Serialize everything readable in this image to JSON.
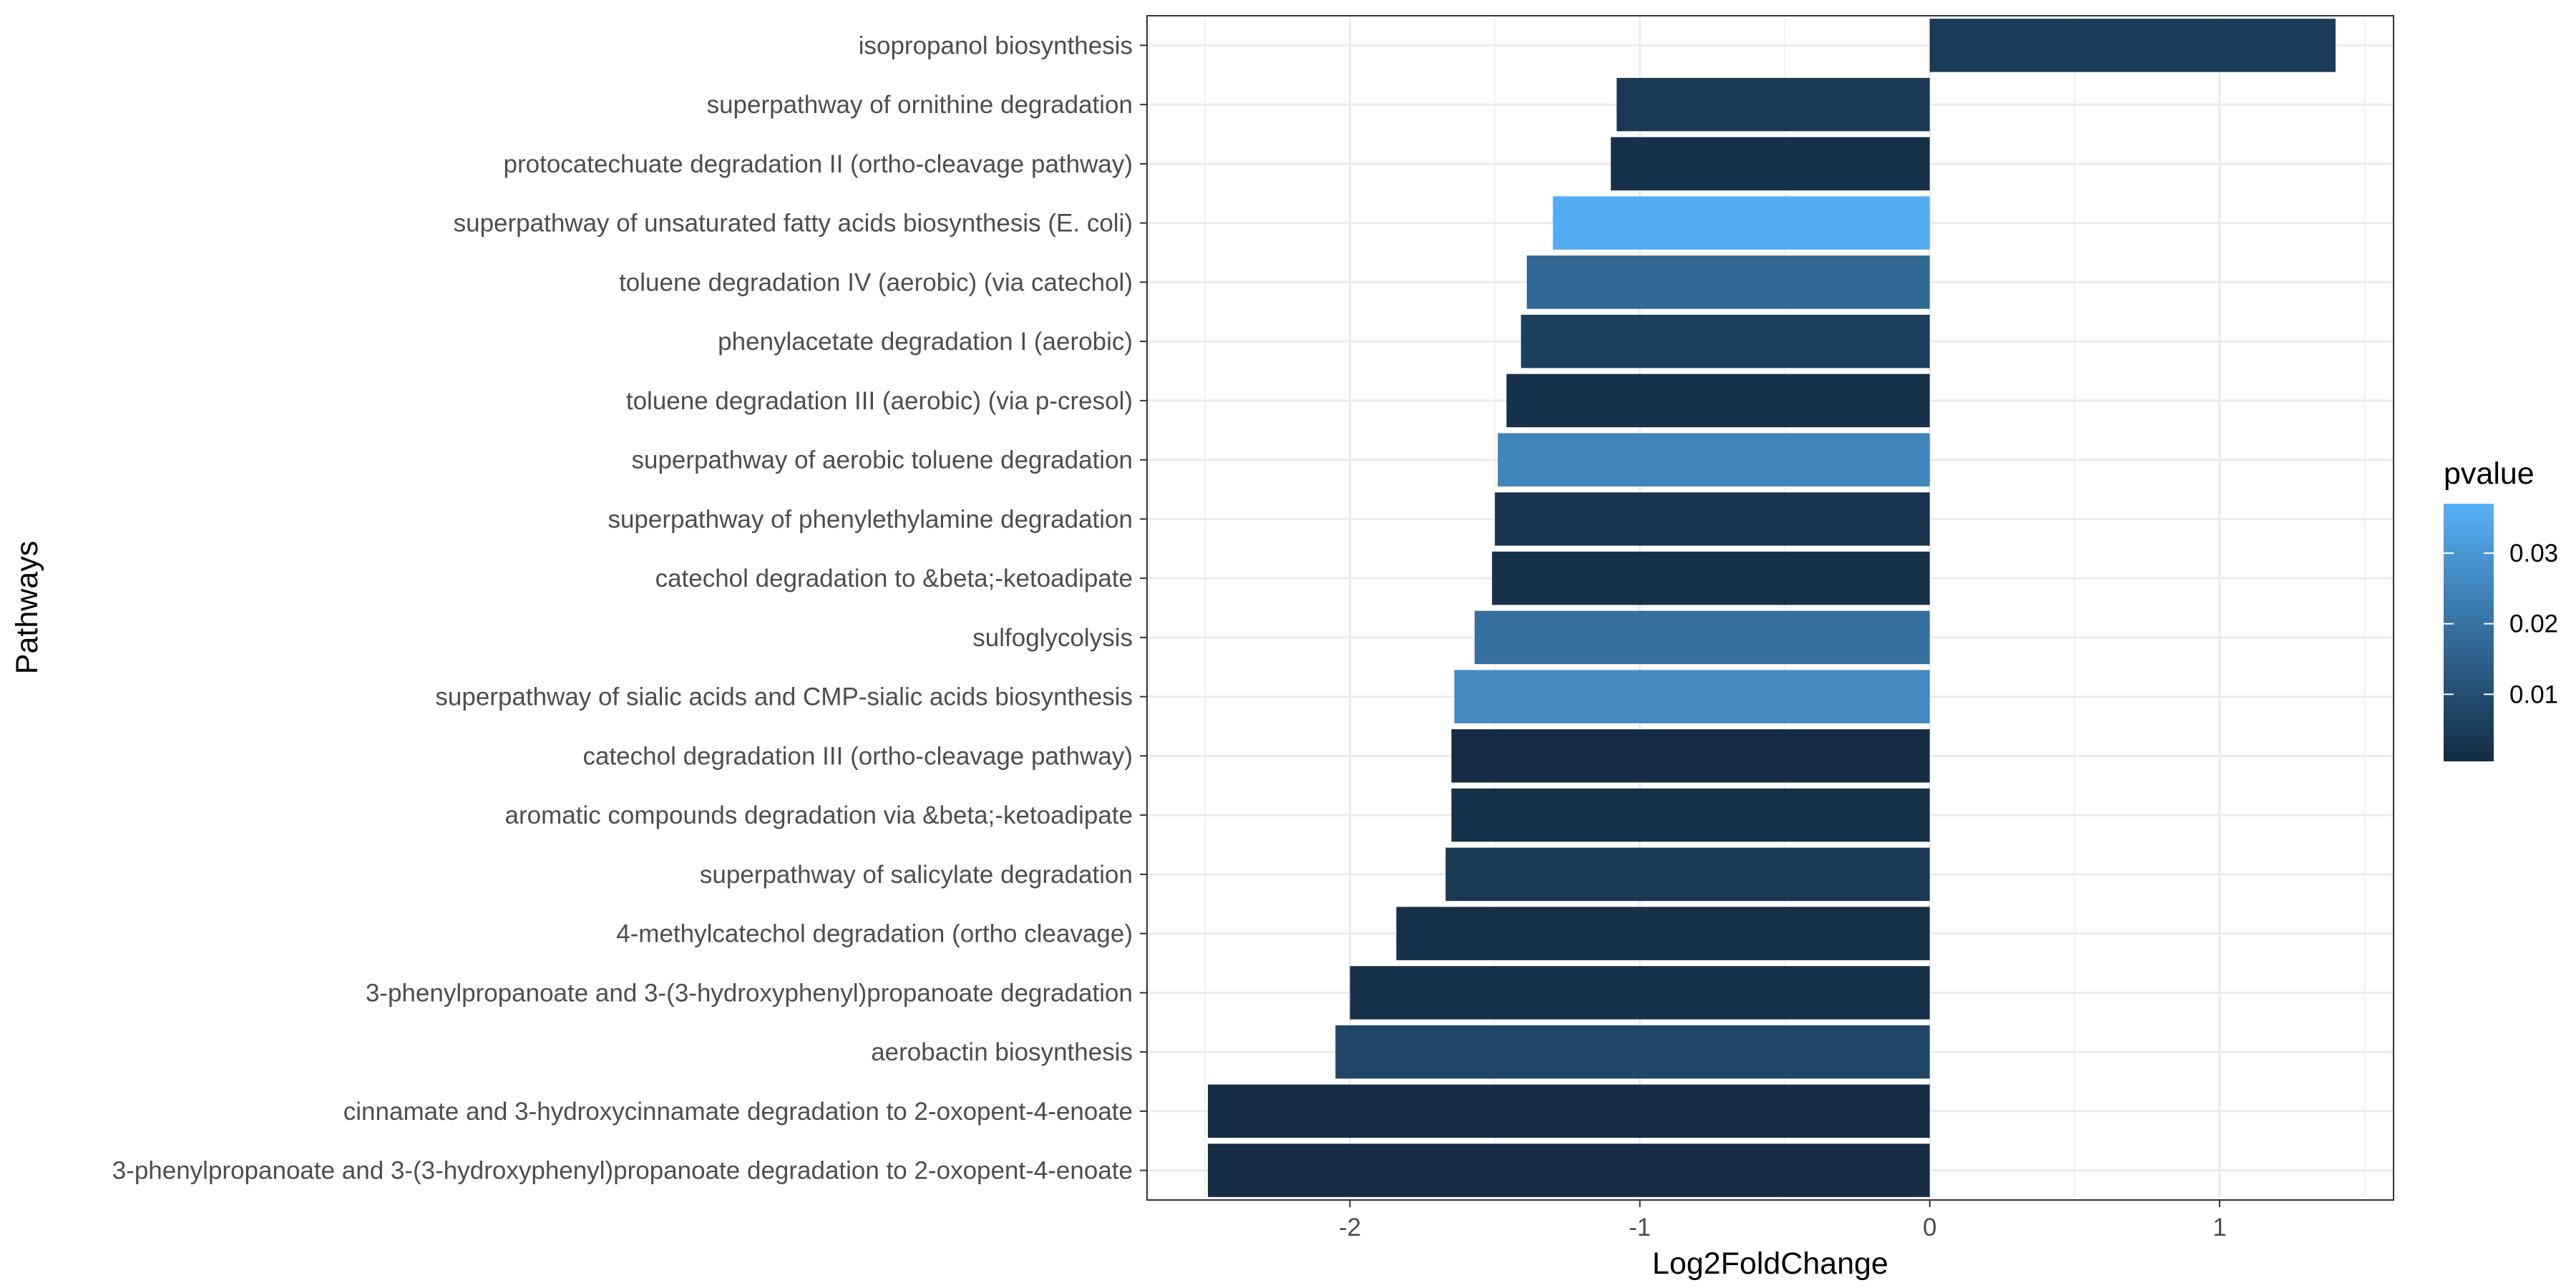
{
  "chart_data": {
    "type": "bar",
    "orientation": "horizontal",
    "xlabel": "Log2FoldChange",
    "ylabel": "Pathways",
    "xlim": [
      -2.7,
      1.6
    ],
    "xticks": [
      -2,
      -1,
      0,
      1
    ],
    "xtick_labels": [
      "-2",
      "-1",
      "0",
      "1"
    ],
    "grid": true,
    "legend": {
      "title": "pvalue",
      "position": "right",
      "type": "colorbar",
      "range": [
        0.0005,
        0.037
      ],
      "ticks": [
        0.01,
        0.02,
        0.03
      ],
      "tick_labels": [
        "0.01",
        "0.02",
        "0.03"
      ],
      "color_low": "#132B43",
      "color_high": "#56B1F7"
    },
    "categories": [
      "3-phenylpropanoate and 3-(3-hydroxyphenyl)propanoate degradation to 2-oxopent-4-enoate",
      "cinnamate and 3-hydroxycinnamate degradation to 2-oxopent-4-enoate",
      "aerobactin biosynthesis",
      "3-phenylpropanoate and 3-(3-hydroxyphenyl)propanoate degradation",
      "4-methylcatechol degradation (ortho cleavage)",
      "superpathway of salicylate degradation",
      "aromatic compounds degradation via &beta;-ketoadipate",
      "catechol degradation III (ortho-cleavage pathway)",
      "superpathway of sialic acids and CMP-sialic acids biosynthesis",
      "sulfoglycolysis",
      "catechol degradation to &beta;-ketoadipate",
      "superpathway of phenylethylamine degradation",
      "superpathway of aerobic toluene degradation",
      "toluene degradation III (aerobic) (via p-cresol)",
      "phenylacetate degradation I (aerobic)",
      "toluene degradation IV (aerobic) (via catechol)",
      "superpathway of unsaturated fatty acids biosynthesis (E. coli)",
      "protocatechuate degradation II (ortho-cleavage pathway)",
      "superpathway of ornithine degradation",
      "isopropanol biosynthesis"
    ],
    "values": [
      -2.49,
      -2.49,
      -2.05,
      -2.0,
      -1.84,
      -1.67,
      -1.65,
      -1.65,
      -1.64,
      -1.57,
      -1.51,
      -1.5,
      -1.49,
      -1.46,
      -1.41,
      -1.39,
      -1.3,
      -1.1,
      -1.08,
      1.4
    ],
    "pvalues": [
      0.001,
      0.001,
      0.008,
      0.002,
      0.002,
      0.004,
      0.002,
      0.001,
      0.026,
      0.019,
      0.002,
      0.003,
      0.025,
      0.002,
      0.006,
      0.017,
      0.036,
      0.002,
      0.004,
      0.005
    ]
  }
}
